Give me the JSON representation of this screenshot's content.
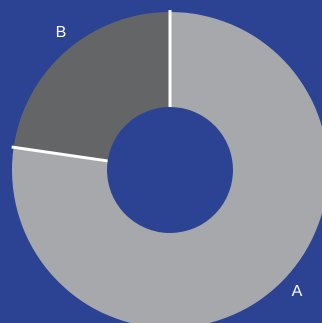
{
  "chart_data": {
    "type": "pie",
    "donut": true,
    "title": "",
    "categories": [
      "A",
      "B"
    ],
    "values": [
      77.3,
      22.7
    ],
    "colors": [
      "#a7a8ab",
      "#646567"
    ],
    "background": "#2c4394",
    "separator_color": "#ffffff",
    "start_angle_deg": 0,
    "direction": "clockwise",
    "legend": "none"
  }
}
